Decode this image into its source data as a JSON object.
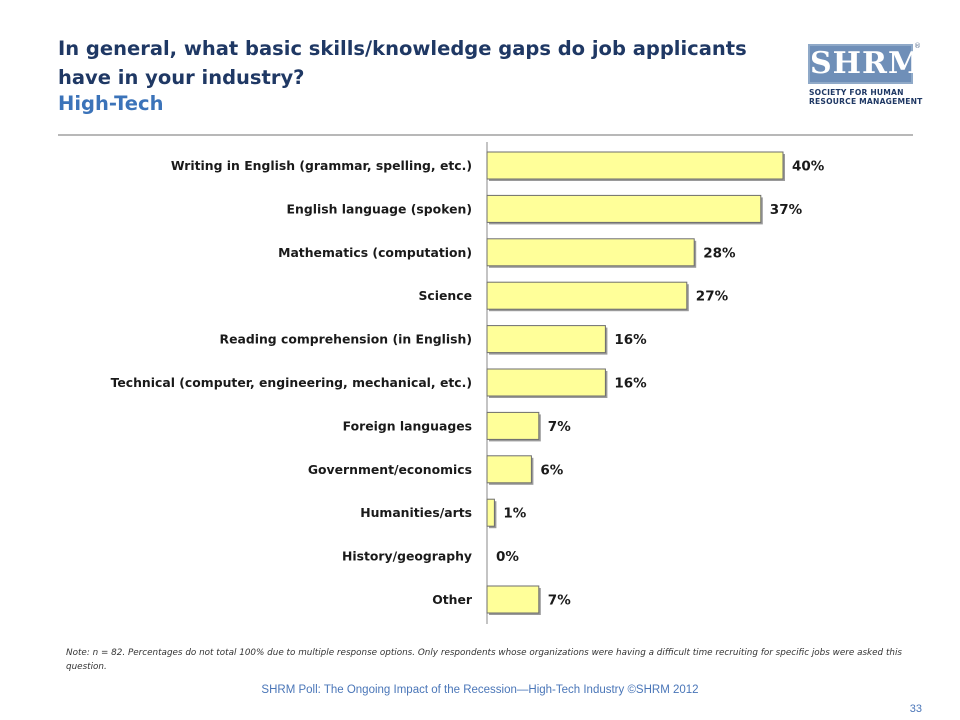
{
  "header": {
    "title": "In general, what basic skills/knowledge gaps do job applicants have in your industry?",
    "subtitle": "High-Tech"
  },
  "logo": {
    "wordmark": "SHRM",
    "registered": "®",
    "tagline_line1": "SOCIETY FOR HUMAN",
    "tagline_line2": "RESOURCE MANAGEMENT"
  },
  "chart_data": {
    "type": "bar",
    "orientation": "horizontal",
    "categories": [
      "Writing in English (grammar, spelling, etc.)",
      "English language (spoken)",
      "Mathematics (computation)",
      "Science",
      "Reading comprehension (in English)",
      "Technical (computer, engineering, mechanical, etc.)",
      "Foreign languages",
      "Government/economics",
      "Humanities/arts",
      "History/geography",
      "Other"
    ],
    "values": [
      40,
      37,
      28,
      27,
      16,
      16,
      7,
      6,
      1,
      0,
      7
    ],
    "value_labels": [
      "40%",
      "37%",
      "28%",
      "27%",
      "16%",
      "16%",
      "7%",
      "6%",
      "1%",
      "0%",
      "7%"
    ],
    "xlim": [
      0,
      40
    ],
    "unit": "%",
    "grid": false,
    "legend": "none",
    "bar_color": "#ffff99"
  },
  "note": "Note: n = 82. Percentages do not total 100% due to multiple response options. Only respondents whose organizations were having a difficult time recruiting for specific jobs were asked this question.",
  "footer": "SHRM Poll: The Ongoing Impact of the Recession—High-Tech Industry ©SHRM 2012",
  "page_number": "33",
  "colors": {
    "title": "#1f3864",
    "subtitle": "#3b73b9",
    "footer": "#4a76b8",
    "bar_fill": "#ffff99",
    "bar_stroke": "#6e6e6e"
  }
}
